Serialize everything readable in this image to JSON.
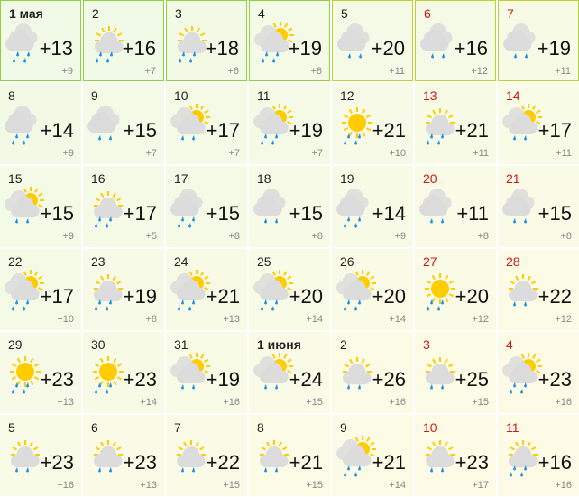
{
  "colors": {
    "weekend": "#d01818",
    "sun": "#ffcc00",
    "cloud": "#dcdcdc",
    "rain": "#1a8ee8",
    "highlight_border": "#8fd13a"
  },
  "days": [
    {
      "day": "1 мая",
      "bold": true,
      "icon": "cloudy",
      "temp": "+13",
      "night": "+9"
    },
    {
      "day": "2",
      "icon": "partly-cloudy",
      "temp": "+16",
      "night": "+7"
    },
    {
      "day": "3",
      "icon": "partly-cloudy",
      "temp": "+18",
      "night": "+6"
    },
    {
      "day": "4",
      "icon": "sun-clouds",
      "temp": "+19",
      "night": "+8"
    },
    {
      "day": "5",
      "icon": "cloudy-rain",
      "temp": "+20",
      "night": "+11"
    },
    {
      "day": "6",
      "weekend": true,
      "icon": "cloudy-rain",
      "temp": "+16",
      "night": "+12"
    },
    {
      "day": "7",
      "weekend": true,
      "icon": "cloudy-rain",
      "temp": "+19",
      "night": "+11"
    },
    {
      "day": "8",
      "icon": "cloudy-heavy-rain",
      "temp": "+14",
      "night": "+9"
    },
    {
      "day": "9",
      "icon": "cloudy-rain",
      "temp": "+15",
      "night": "+7"
    },
    {
      "day": "10",
      "icon": "sun-clouds-rain",
      "temp": "+17",
      "night": "+7"
    },
    {
      "day": "11",
      "icon": "sun-clouds",
      "temp": "+19",
      "night": "+7"
    },
    {
      "day": "12",
      "icon": "sunny",
      "temp": "+21",
      "night": "+10"
    },
    {
      "day": "13",
      "weekend": true,
      "icon": "partly-cloudy",
      "temp": "+21",
      "night": "+11"
    },
    {
      "day": "14",
      "weekend": true,
      "icon": "sun-clouds-rain",
      "temp": "+17",
      "night": "+11"
    },
    {
      "day": "15",
      "icon": "sun-clouds-rain",
      "temp": "+15",
      "night": "+9"
    },
    {
      "day": "16",
      "icon": "partly-cloudy",
      "temp": "+17",
      "night": "+5"
    },
    {
      "day": "17",
      "icon": "cloudy",
      "temp": "+15",
      "night": "+8"
    },
    {
      "day": "18",
      "icon": "cloudy-rain",
      "temp": "+15",
      "night": "+8"
    },
    {
      "day": "19",
      "icon": "cloudy-heavy-rain",
      "temp": "+14",
      "night": "+9"
    },
    {
      "day": "20",
      "weekend": true,
      "icon": "cloudy-rain",
      "temp": "+11",
      "night": "+8"
    },
    {
      "day": "21",
      "weekend": true,
      "icon": "cloudy-rain",
      "temp": "+15",
      "night": "+8"
    },
    {
      "day": "22",
      "icon": "sun-clouds",
      "temp": "+17",
      "night": "+10"
    },
    {
      "day": "23",
      "icon": "partly-cloudy",
      "temp": "+19",
      "night": "+8"
    },
    {
      "day": "24",
      "icon": "sun-clouds",
      "temp": "+21",
      "night": "+13"
    },
    {
      "day": "25",
      "icon": "sun-clouds",
      "temp": "+20",
      "night": "+14"
    },
    {
      "day": "26",
      "icon": "sun-clouds-heavy-rain",
      "temp": "+20",
      "night": "+14"
    },
    {
      "day": "27",
      "weekend": true,
      "icon": "sunny",
      "temp": "+20",
      "night": "+12"
    },
    {
      "day": "28",
      "weekend": true,
      "icon": "partly-cloudy-rain",
      "temp": "+22",
      "night": "+12"
    },
    {
      "day": "29",
      "icon": "sunny",
      "temp": "+23",
      "night": "+13"
    },
    {
      "day": "30",
      "icon": "sunny",
      "temp": "+23",
      "night": "+14"
    },
    {
      "day": "31",
      "icon": "sun-clouds-rain",
      "temp": "+19",
      "night": "+16"
    },
    {
      "day": "1 июня",
      "bold": true,
      "icon": "sun-clouds-rain",
      "temp": "+24",
      "night": "+15"
    },
    {
      "day": "2",
      "icon": "partly-cloudy-rain",
      "temp": "+26",
      "night": "+16"
    },
    {
      "day": "3",
      "weekend": true,
      "icon": "partly-cloudy-rain",
      "temp": "+25",
      "night": "+15"
    },
    {
      "day": "4",
      "weekend": true,
      "icon": "sun-clouds-heavy-rain",
      "temp": "+23",
      "night": "+16"
    },
    {
      "day": "5",
      "icon": "partly-cloudy-rain",
      "temp": "+23",
      "night": "+16"
    },
    {
      "day": "6",
      "icon": "partly-cloudy-rain",
      "temp": "+23",
      "night": "+13"
    },
    {
      "day": "7",
      "icon": "partly-cloudy-rain",
      "temp": "+22",
      "night": "+15"
    },
    {
      "day": "8",
      "icon": "partly-cloudy-rain",
      "temp": "+21",
      "night": "+15"
    },
    {
      "day": "9",
      "icon": "sun-clouds-heavy-rain",
      "temp": "+21",
      "night": "+14"
    },
    {
      "day": "10",
      "weekend": true,
      "icon": "partly-cloudy-rain",
      "temp": "+23",
      "night": "+17"
    },
    {
      "day": "11",
      "weekend": true,
      "icon": "partly-cloudy",
      "temp": "+16",
      "night": "+16"
    }
  ]
}
